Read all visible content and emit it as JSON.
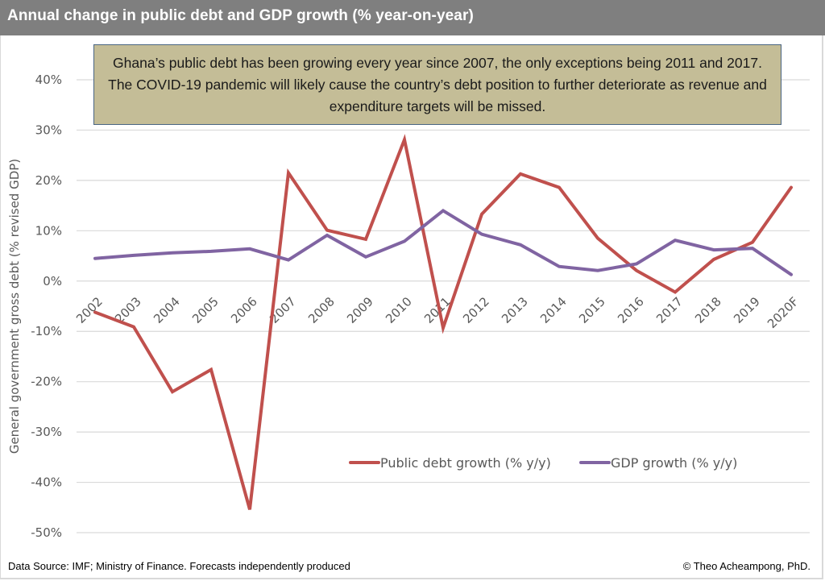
{
  "header": {
    "title": "Annual change in public debt and GDP growth (%  year-on-year)"
  },
  "callout": {
    "text": "Ghana’s public debt has been growing every year since 2007, the only exceptions being 2011 and 2017. The COVID-19 pandemic will likely cause the country’s debt position to further deteriorate as revenue and expenditure targets will be missed."
  },
  "footer": {
    "source": "Data Source: IMF; Ministry of Finance. Forecasts independently produced",
    "credit": "© Theo Acheampong, PhD."
  },
  "chart_data": {
    "type": "line",
    "title": "Annual change in public debt and GDP growth (%  year-on-year)",
    "xlabel": "",
    "ylabel": "General government gross debt (% revised GDP)",
    "ylim": [
      -50,
      40
    ],
    "y_ticks": [
      40,
      30,
      20,
      10,
      0,
      -10,
      -20,
      -30,
      -40,
      -50
    ],
    "y_tick_labels": [
      "40%",
      "30%",
      "20%",
      "10%",
      "0%",
      "-10%",
      "-20%",
      "-30%",
      "-40%",
      "-50%"
    ],
    "grid": true,
    "legend_position": "bottom-right",
    "categories": [
      "2002",
      "2003",
      "2004",
      "2005",
      "2006",
      "2007",
      "2008",
      "2009",
      "2010",
      "2011",
      "2012",
      "2013",
      "2014",
      "2015",
      "2016",
      "2017",
      "2018",
      "2019",
      "2020F"
    ],
    "series": [
      {
        "name": "Public debt growth (% y/y)",
        "color": "#c0504d",
        "values": [
          -6.2,
          -9.1,
          -22.0,
          -17.6,
          -45.4,
          21.5,
          10.1,
          8.3,
          28.1,
          -9.3,
          13.3,
          21.3,
          18.6,
          8.5,
          2.1,
          -2.2,
          4.3,
          7.7,
          18.6
        ]
      },
      {
        "name": "GDP growth (% y/y)",
        "color": "#8064a2",
        "values": [
          4.5,
          5.1,
          5.6,
          5.9,
          6.4,
          4.2,
          9.1,
          4.8,
          7.9,
          14.0,
          9.3,
          7.2,
          2.9,
          2.1,
          3.4,
          8.1,
          6.2,
          6.5,
          1.3
        ]
      }
    ]
  }
}
